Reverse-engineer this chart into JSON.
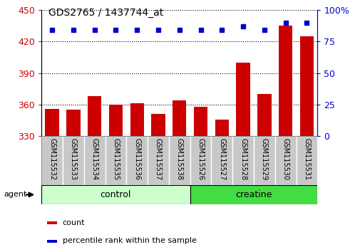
{
  "title": "GDS2765 / 1437744_at",
  "samples": [
    "GSM115532",
    "GSM115533",
    "GSM115534",
    "GSM115535",
    "GSM115536",
    "GSM115537",
    "GSM115538",
    "GSM115526",
    "GSM115527",
    "GSM115528",
    "GSM115529",
    "GSM115530",
    "GSM115531"
  ],
  "counts": [
    356,
    355,
    368,
    360,
    361,
    351,
    364,
    358,
    346,
    400,
    370,
    435,
    425
  ],
  "percentiles": [
    84,
    84,
    84,
    84,
    84,
    84,
    84,
    84,
    84,
    87,
    84,
    90,
    90
  ],
  "ylim_left": [
    330,
    450
  ],
  "ylim_right": [
    0,
    100
  ],
  "yticks_left": [
    330,
    360,
    390,
    420,
    450
  ],
  "yticks_right": [
    0,
    25,
    50,
    75,
    100
  ],
  "bar_color": "#cc0000",
  "dot_color": "#0000cc",
  "control_color": "#ccffcc",
  "creatine_color": "#44dd44",
  "control_label": "control",
  "creatine_label": "creatine",
  "agent_label": "agent",
  "legend_count": "count",
  "legend_pct": "percentile rank within the sample",
  "n_control": 7,
  "n_creatine": 6,
  "tick_label_color_left": "#cc0000",
  "tick_label_color_right": "#0000cc",
  "bar_baseline": 330,
  "label_box_color": "#c8c8c8",
  "title_fontsize": 10,
  "bar_fontsize": 7,
  "group_fontsize": 9,
  "legend_fontsize": 8
}
